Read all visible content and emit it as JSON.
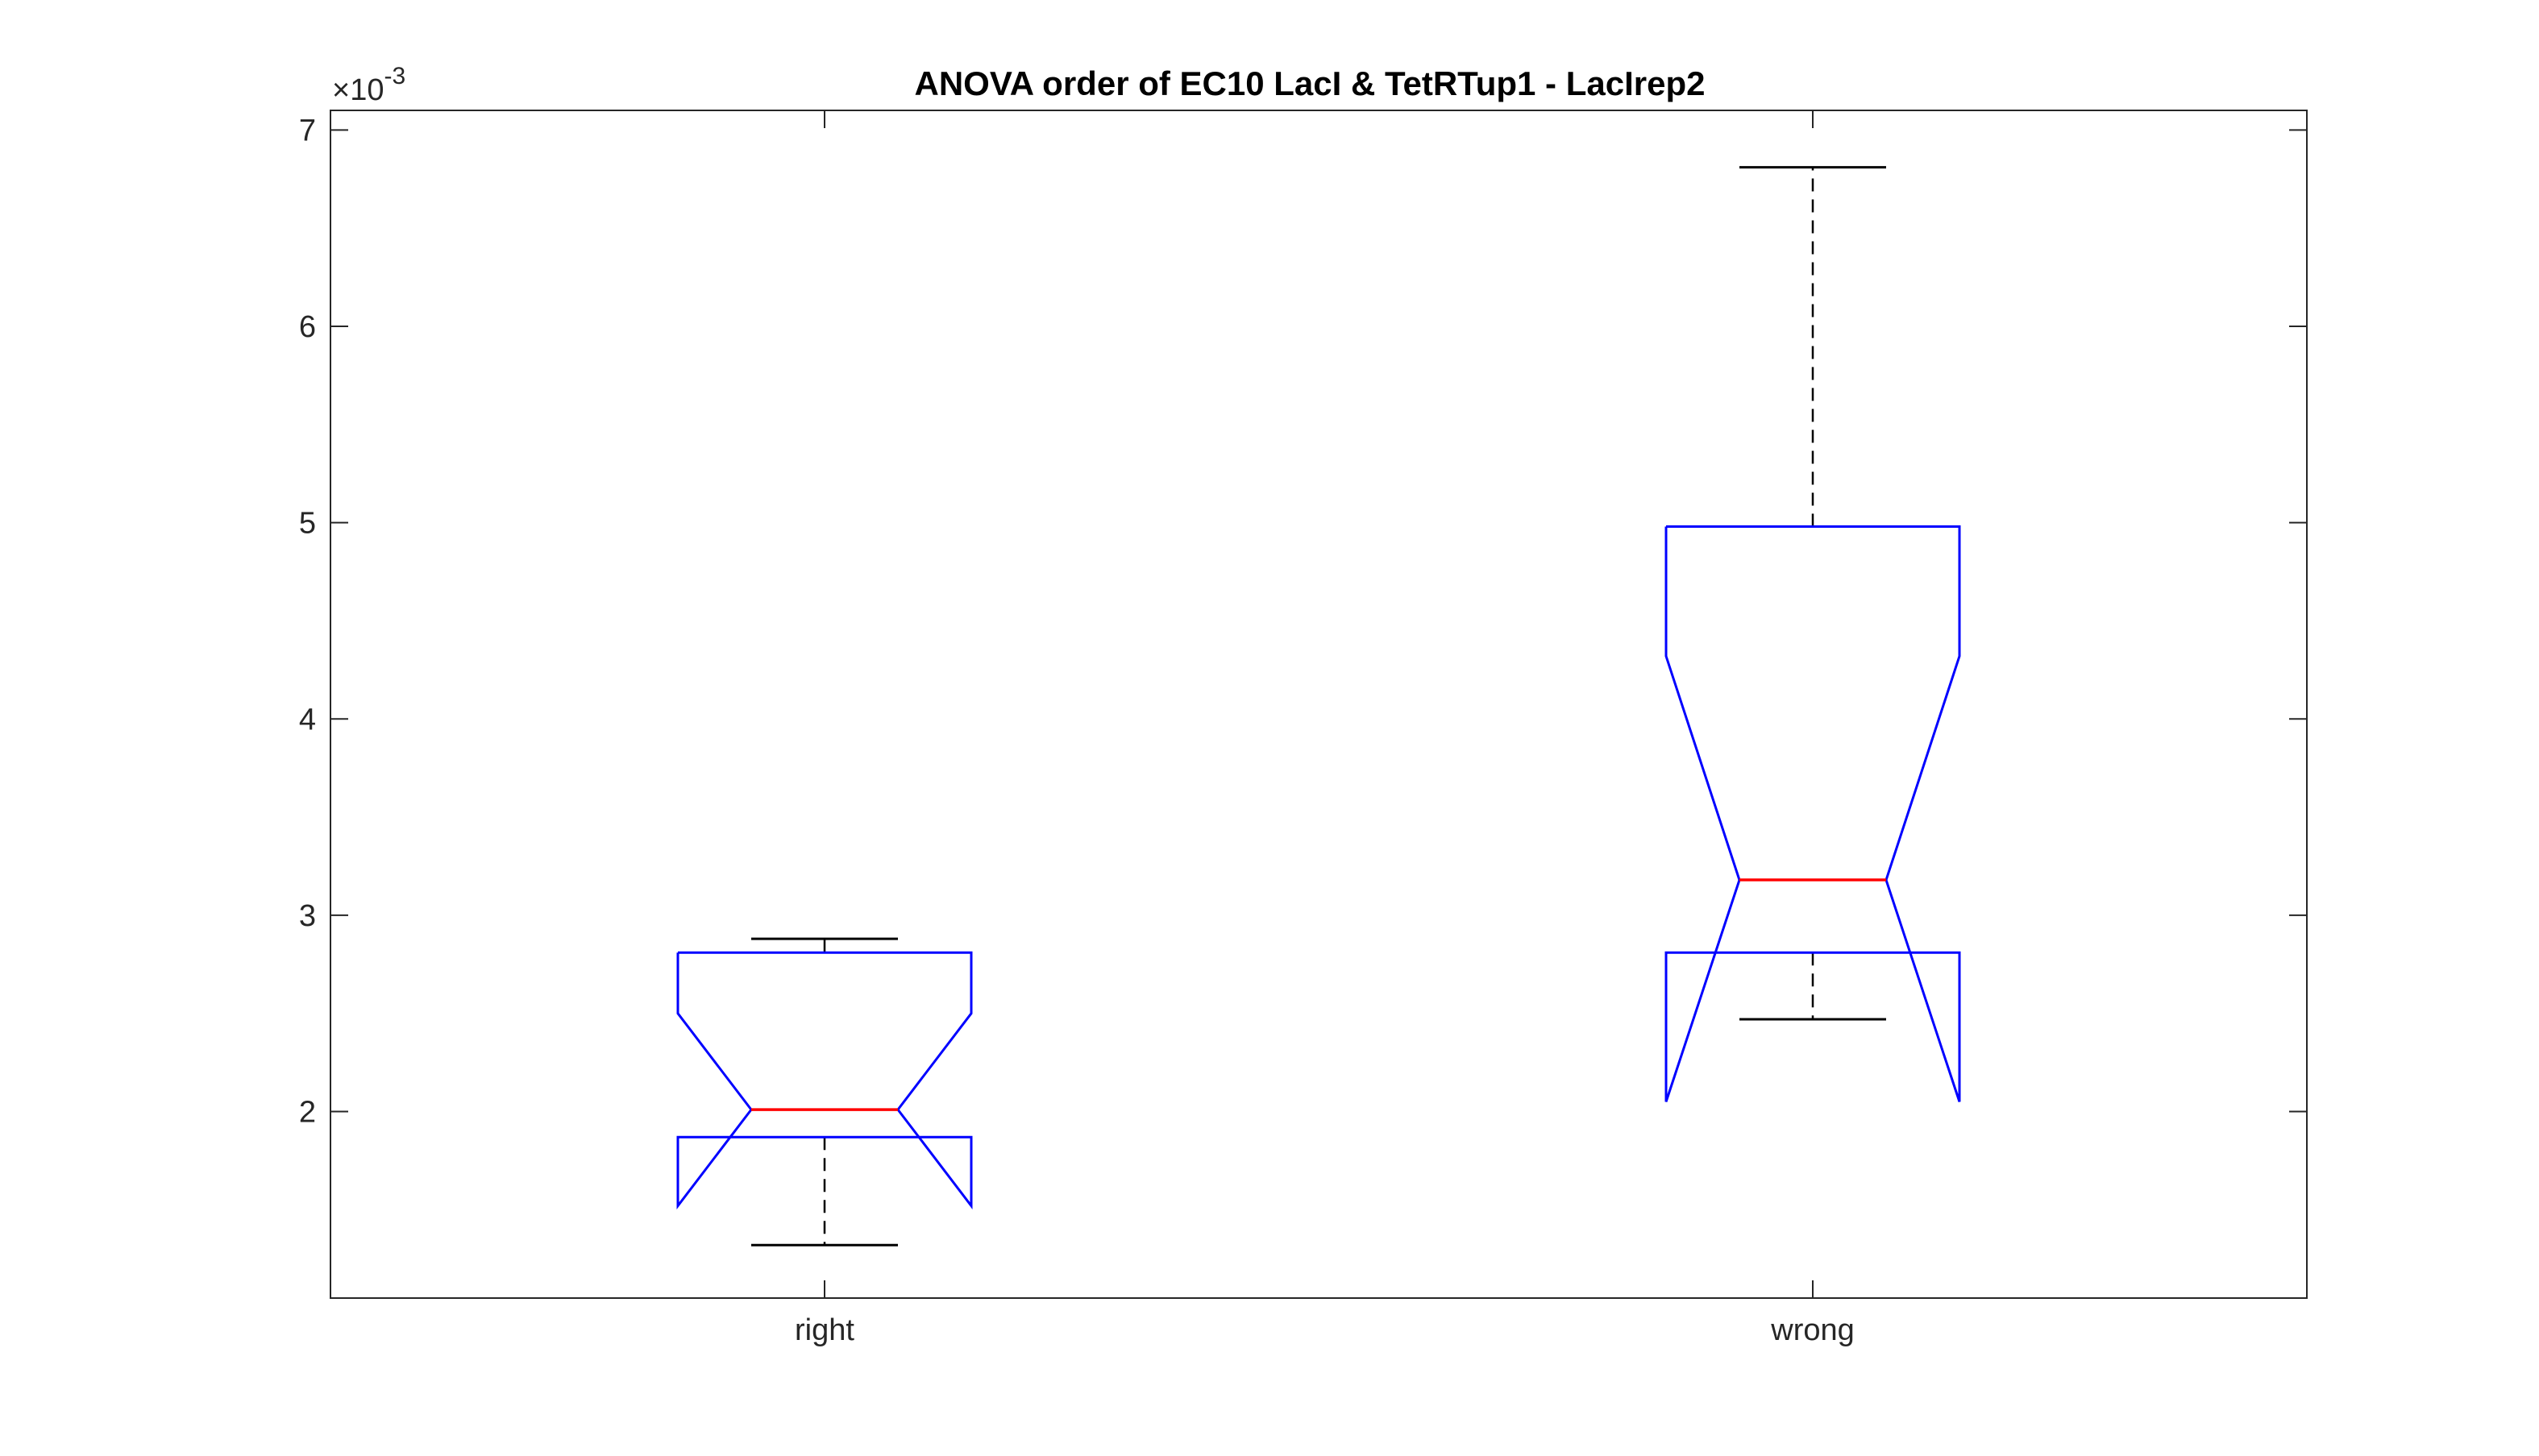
{
  "chart_data": {
    "type": "boxplot",
    "title": "ANOVA order of EC10 LacI & TetRTup1 - LacIrep2",
    "xlabel": "",
    "ylabel": "",
    "y_exponent_label": "×10",
    "y_exponent_power": "-3",
    "y_scale": 0.001,
    "ylim": [
      1.05,
      7.1
    ],
    "y_ticks": [
      2,
      3,
      4,
      5,
      6,
      7
    ],
    "notched": true,
    "categories": [
      "right",
      "wrong"
    ],
    "boxes": [
      {
        "label": "right",
        "whisker_low": 1.32,
        "q1": 1.87,
        "median": 2.01,
        "q3": 2.81,
        "whisker_high": 2.88,
        "notch_low": 1.52,
        "notch_high": 2.5
      },
      {
        "label": "wrong",
        "whisker_low": 2.47,
        "q1": 2.81,
        "median": 3.18,
        "q3": 4.98,
        "whisker_high": 6.81,
        "notch_low": 2.05,
        "notch_high": 4.32
      }
    ],
    "colors": {
      "box": "#0000ff",
      "median": "#ff0000",
      "whisker": "#000000",
      "axis": "#262626"
    },
    "grid": false,
    "box_frame": true
  }
}
